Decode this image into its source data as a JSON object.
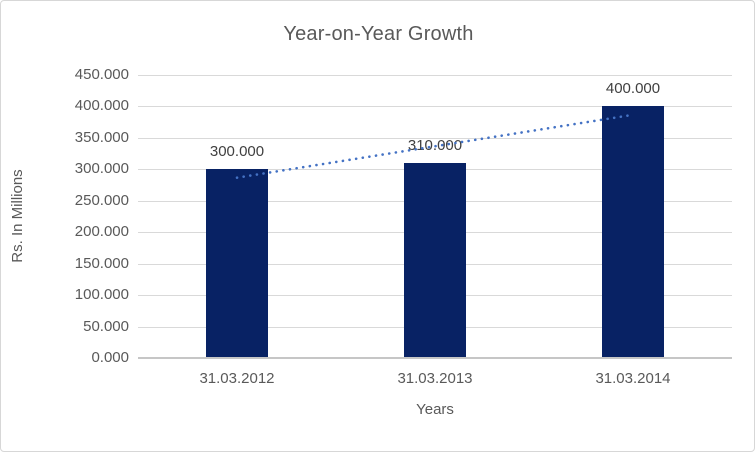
{
  "chart_data": {
    "type": "bar",
    "title": "Year-on-Year Growth",
    "xlabel": "Years",
    "ylabel": "Rs. In Millions",
    "categories": [
      "31.03.2012",
      "31.03.2013",
      "31.03.2014"
    ],
    "values": [
      300,
      310,
      400
    ],
    "data_labels": [
      "300.000",
      "310.000",
      "400.000"
    ],
    "y_ticks": [
      "450.000",
      "400.000",
      "350.000",
      "300.000",
      "250.000",
      "200.000",
      "150.000",
      "100.000",
      "50.000",
      "0.000"
    ],
    "ylim": [
      0,
      450
    ],
    "grid": true,
    "legend": "none",
    "bar_color": "#082264",
    "trendline": {
      "type": "linear",
      "style": "dotted",
      "color": "#4472c4",
      "values_at_categories": [
        286.7,
        336.7,
        386.7
      ]
    },
    "colors": {
      "title_text": "#595959",
      "axis_text": "#595959",
      "data_label_text": "#404040",
      "gridline": "#d9d9d9",
      "axis_line": "#c6c6c6",
      "border": "#d7d7d7",
      "background": "#ffffff"
    }
  }
}
